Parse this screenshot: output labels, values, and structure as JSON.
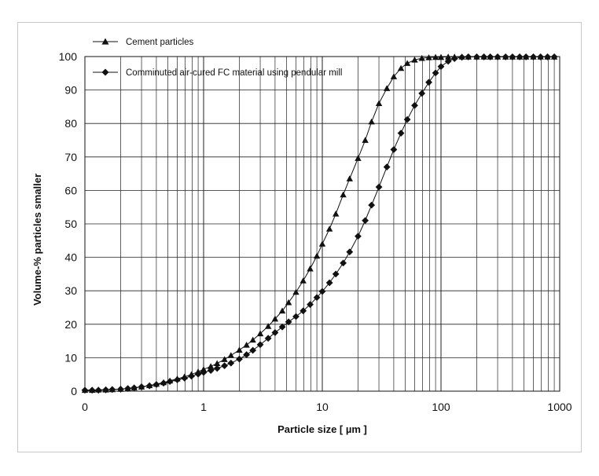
{
  "chart_data": {
    "type": "line",
    "xlabel": "Particle size  [ µm ]",
    "ylabel": "Volume-% particles smaller",
    "x_scale": "log",
    "xlim": [
      0.1,
      1000
    ],
    "ylim": [
      0,
      100
    ],
    "x_tick_labels": [
      "0",
      "1",
      "10",
      "100",
      "1000"
    ],
    "y_ticks": [
      0,
      10,
      20,
      30,
      40,
      50,
      60,
      70,
      80,
      90,
      100
    ],
    "grid": true,
    "legend_position": "top-left",
    "series": [
      {
        "name": "Cement particles",
        "marker": "triangle",
        "color": "#111111",
        "x": [
          0.1,
          0.115,
          0.13,
          0.15,
          0.17,
          0.2,
          0.23,
          0.26,
          0.3,
          0.35,
          0.4,
          0.46,
          0.52,
          0.6,
          0.69,
          0.79,
          0.9,
          1.0,
          1.15,
          1.3,
          1.5,
          1.7,
          2.0,
          2.3,
          2.6,
          3.0,
          3.5,
          4.0,
          4.6,
          5.2,
          6.0,
          6.9,
          7.9,
          9.0,
          10.0,
          11.5,
          13,
          15,
          17,
          20,
          23,
          26,
          30,
          35,
          40,
          46,
          52,
          60,
          69,
          79,
          90,
          100,
          115,
          130,
          150,
          170,
          200,
          230,
          260,
          300,
          350,
          400,
          460,
          520,
          600,
          690,
          790,
          900
        ],
        "y": [
          0.3,
          0.3,
          0.4,
          0.4,
          0.5,
          0.6,
          0.8,
          1.0,
          1.3,
          1.7,
          2.1,
          2.6,
          3.1,
          3.7,
          4.3,
          5.0,
          5.8,
          6.5,
          7.4,
          8.3,
          9.5,
          10.7,
          12.3,
          13.8,
          15.3,
          17.2,
          19.4,
          21.6,
          24.0,
          26.5,
          29.6,
          33.0,
          36.6,
          40.4,
          44.0,
          48.5,
          53.0,
          58.7,
          63.5,
          69.6,
          75.0,
          80.5,
          86.0,
          90.5,
          94.0,
          96.5,
          98.0,
          99.0,
          99.5,
          99.7,
          99.8,
          99.8,
          99.9,
          99.9,
          99.9,
          99.9,
          99.9,
          99.9,
          99.9,
          99.9,
          99.9,
          99.9,
          99.9,
          99.9,
          99.9,
          99.9,
          99.9,
          99.9
        ]
      },
      {
        "name": "Comminuted air-cured FC material using pendular mill",
        "marker": "diamond",
        "color": "#111111",
        "x": [
          0.1,
          0.115,
          0.13,
          0.15,
          0.17,
          0.2,
          0.23,
          0.26,
          0.3,
          0.35,
          0.4,
          0.46,
          0.52,
          0.6,
          0.69,
          0.79,
          0.9,
          1.0,
          1.15,
          1.3,
          1.5,
          1.7,
          2.0,
          2.3,
          2.6,
          3.0,
          3.5,
          4.0,
          4.6,
          5.2,
          6.0,
          6.9,
          7.9,
          9.0,
          10.0,
          11.5,
          13,
          15,
          17,
          20,
          23,
          26,
          30,
          35,
          40,
          46,
          52,
          60,
          69,
          79,
          90,
          100,
          115,
          130,
          150,
          170,
          200,
          230,
          260,
          300,
          350,
          400,
          460,
          520,
          600,
          690,
          790,
          900
        ],
        "y": [
          0.3,
          0.3,
          0.3,
          0.4,
          0.5,
          0.6,
          0.8,
          1.0,
          1.3,
          1.6,
          2.0,
          2.4,
          2.9,
          3.4,
          3.9,
          4.5,
          5.1,
          5.6,
          6.2,
          6.8,
          7.6,
          8.4,
          9.6,
          10.9,
          12.2,
          13.9,
          15.8,
          17.5,
          19.2,
          20.7,
          22.3,
          24.0,
          25.9,
          28.0,
          29.8,
          32.4,
          35.0,
          38.3,
          41.6,
          46.3,
          51.0,
          55.6,
          61.0,
          67.0,
          72.2,
          77.1,
          81.2,
          85.4,
          89.0,
          92.3,
          95.1,
          97.0,
          98.6,
          99.4,
          99.8,
          99.9,
          99.9,
          99.9,
          99.9,
          99.9,
          99.9,
          99.9,
          99.9,
          99.9,
          99.9,
          99.9,
          99.9,
          99.9
        ]
      }
    ]
  }
}
